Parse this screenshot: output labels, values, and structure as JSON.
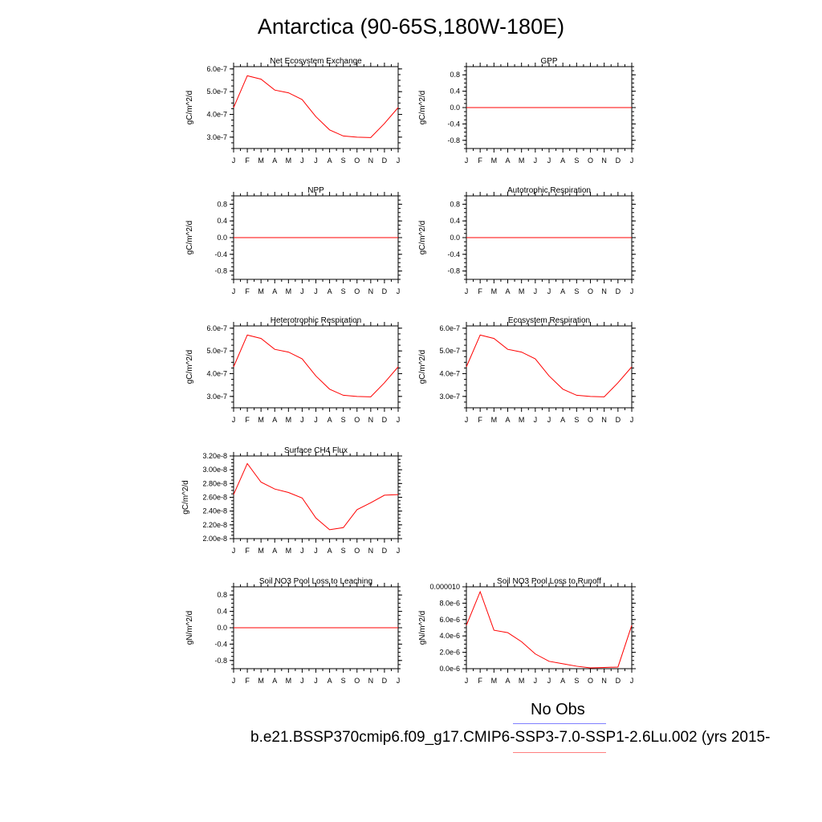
{
  "title": "Antarctica (90-65S,180W-180E)",
  "legend": {
    "obs_label": "No Obs",
    "obs_color": "#7f7fff",
    "case_label": "b.e21.BSSP370cmip6.f09_g17.CMIP6-SSP3-7.0-SSP1-2.6Lu.002 (yrs 2015-",
    "case_color": "#ff7f7f"
  },
  "line_color": "#ff0000",
  "chart_data": [
    {
      "type": "line",
      "title": "Net Ecosystem Exchange",
      "ylabel": "gC/m^2/d",
      "x": [
        "J",
        "F",
        "M",
        "A",
        "M",
        "J",
        "J",
        "A",
        "S",
        "O",
        "N",
        "D",
        "J"
      ],
      "ylim": [
        2.5e-07,
        6.1e-07
      ],
      "yticks": [
        3e-07,
        4e-07,
        5e-07,
        6e-07
      ],
      "yticklabels": [
        "3.0e-7",
        "4.0e-7",
        "5.0e-7",
        "6.0e-7"
      ],
      "series": [
        {
          "values": [
            4.3e-07,
            5.7e-07,
            5.55e-07,
            5.07e-07,
            4.95e-07,
            4.65e-07,
            3.9e-07,
            3.32e-07,
            3.05e-07,
            3e-07,
            2.98e-07,
            3.6e-07,
            4.3e-07
          ]
        }
      ]
    },
    {
      "type": "line",
      "title": "GPP",
      "ylabel": "gC/m^2/d",
      "x": [
        "J",
        "F",
        "M",
        "A",
        "M",
        "J",
        "J",
        "A",
        "S",
        "O",
        "N",
        "D",
        "J"
      ],
      "ylim": [
        -1.0,
        1.0
      ],
      "yticks": [
        -0.8,
        -0.4,
        0.0,
        0.4,
        0.8
      ],
      "yticklabels": [
        "-0.8",
        "-0.4",
        "0.0",
        "0.4",
        "0.8"
      ],
      "series": [
        {
          "values": [
            0,
            0,
            0,
            0,
            0,
            0,
            0,
            0,
            0,
            0,
            0,
            0,
            0
          ]
        }
      ]
    },
    {
      "type": "line",
      "title": "NPP",
      "ylabel": "gC/m^2/d",
      "x": [
        "J",
        "F",
        "M",
        "A",
        "M",
        "J",
        "J",
        "A",
        "S",
        "O",
        "N",
        "D",
        "J"
      ],
      "ylim": [
        -1.0,
        1.0
      ],
      "yticks": [
        -0.8,
        -0.4,
        0.0,
        0.4,
        0.8
      ],
      "yticklabels": [
        "-0.8",
        "-0.4",
        "0.0",
        "0.4",
        "0.8"
      ],
      "series": [
        {
          "values": [
            0,
            0,
            0,
            0,
            0,
            0,
            0,
            0,
            0,
            0,
            0,
            0,
            0
          ]
        }
      ]
    },
    {
      "type": "line",
      "title": "Autotrophic Respiration",
      "ylabel": "gC/m^2/d",
      "x": [
        "J",
        "F",
        "M",
        "A",
        "M",
        "J",
        "J",
        "A",
        "S",
        "O",
        "N",
        "D",
        "J"
      ],
      "ylim": [
        -1.0,
        1.0
      ],
      "yticks": [
        -0.8,
        -0.4,
        0.0,
        0.4,
        0.8
      ],
      "yticklabels": [
        "-0.8",
        "-0.4",
        "0.0",
        "0.4",
        "0.8"
      ],
      "series": [
        {
          "values": [
            0,
            0,
            0,
            0,
            0,
            0,
            0,
            0,
            0,
            0,
            0,
            0,
            0
          ]
        }
      ]
    },
    {
      "type": "line",
      "title": "Heterotrophic Respiration",
      "ylabel": "gC/m^2/d",
      "x": [
        "J",
        "F",
        "M",
        "A",
        "M",
        "J",
        "J",
        "A",
        "S",
        "O",
        "N",
        "D",
        "J"
      ],
      "ylim": [
        2.5e-07,
        6.1e-07
      ],
      "yticks": [
        3e-07,
        4e-07,
        5e-07,
        6e-07
      ],
      "yticklabels": [
        "3.0e-7",
        "4.0e-7",
        "5.0e-7",
        "6.0e-7"
      ],
      "series": [
        {
          "values": [
            4.3e-07,
            5.7e-07,
            5.55e-07,
            5.07e-07,
            4.95e-07,
            4.65e-07,
            3.9e-07,
            3.32e-07,
            3.05e-07,
            3e-07,
            2.98e-07,
            3.6e-07,
            4.3e-07
          ]
        }
      ]
    },
    {
      "type": "line",
      "title": "Ecosystem Respiration",
      "ylabel": "gC/m^2/d",
      "x": [
        "J",
        "F",
        "M",
        "A",
        "M",
        "J",
        "J",
        "A",
        "S",
        "O",
        "N",
        "D",
        "J"
      ],
      "ylim": [
        2.5e-07,
        6.1e-07
      ],
      "yticks": [
        3e-07,
        4e-07,
        5e-07,
        6e-07
      ],
      "yticklabels": [
        "3.0e-7",
        "4.0e-7",
        "5.0e-7",
        "6.0e-7"
      ],
      "series": [
        {
          "values": [
            4.3e-07,
            5.7e-07,
            5.55e-07,
            5.07e-07,
            4.95e-07,
            4.65e-07,
            3.9e-07,
            3.32e-07,
            3.05e-07,
            3e-07,
            2.98e-07,
            3.6e-07,
            4.3e-07
          ]
        }
      ]
    },
    {
      "type": "line",
      "title": "Surface CH4 Flux",
      "ylabel": "gC/m^2/d",
      "x": [
        "J",
        "F",
        "M",
        "A",
        "M",
        "J",
        "J",
        "A",
        "S",
        "O",
        "N",
        "D",
        "J"
      ],
      "ylim": [
        2e-08,
        3.2e-08
      ],
      "yticks": [
        2e-08,
        2.2e-08,
        2.4e-08,
        2.6e-08,
        2.8e-08,
        3e-08,
        3.2e-08
      ],
      "yticklabels": [
        "2.00e-8",
        "2.20e-8",
        "2.40e-8",
        "2.60e-8",
        "2.80e-8",
        "3.00e-8",
        "3.20e-8"
      ],
      "series": [
        {
          "values": [
            2.64e-08,
            3.09e-08,
            2.82e-08,
            2.72e-08,
            2.67e-08,
            2.59e-08,
            2.3e-08,
            2.13e-08,
            2.16e-08,
            2.42e-08,
            2.52e-08,
            2.63e-08,
            2.64e-08
          ]
        }
      ]
    },
    {
      "type": "line",
      "title": "Soil NO3 Pool Loss to Leaching",
      "ylabel": "gN/m^2/d",
      "x": [
        "J",
        "F",
        "M",
        "A",
        "M",
        "J",
        "J",
        "A",
        "S",
        "O",
        "N",
        "D",
        "J"
      ],
      "ylim": [
        -1.0,
        1.0
      ],
      "yticks": [
        -0.8,
        -0.4,
        0.0,
        0.4,
        0.8
      ],
      "yticklabels": [
        "-0.8",
        "-0.4",
        "0.0",
        "0.4",
        "0.8"
      ],
      "series": [
        {
          "values": [
            0,
            0,
            0,
            0,
            0,
            0,
            0,
            0,
            0,
            0,
            0,
            0,
            0
          ]
        }
      ]
    },
    {
      "type": "line",
      "title": "Soil NO3 Pool Loss to Runoff",
      "ylabel": "gN/m^2/d",
      "x": [
        "J",
        "F",
        "M",
        "A",
        "M",
        "J",
        "J",
        "A",
        "S",
        "O",
        "N",
        "D",
        "J"
      ],
      "ylim": [
        0,
        1e-05
      ],
      "yticks": [
        0,
        2e-06,
        4e-06,
        6e-06,
        8e-06,
        1e-05
      ],
      "yticklabels": [
        "0.0e-6",
        "2.0e-6",
        "4.0e-6",
        "6.0e-6",
        "8.0e-6",
        "0.000010"
      ],
      "series": [
        {
          "values": [
            5.3e-06,
            9.4e-06,
            4.7e-06,
            4.4e-06,
            3.3e-06,
            1.8e-06,
            9e-07,
            6e-07,
            3e-07,
            1e-07,
            1.5e-07,
            2e-07,
            5.3e-06
          ]
        }
      ]
    }
  ]
}
